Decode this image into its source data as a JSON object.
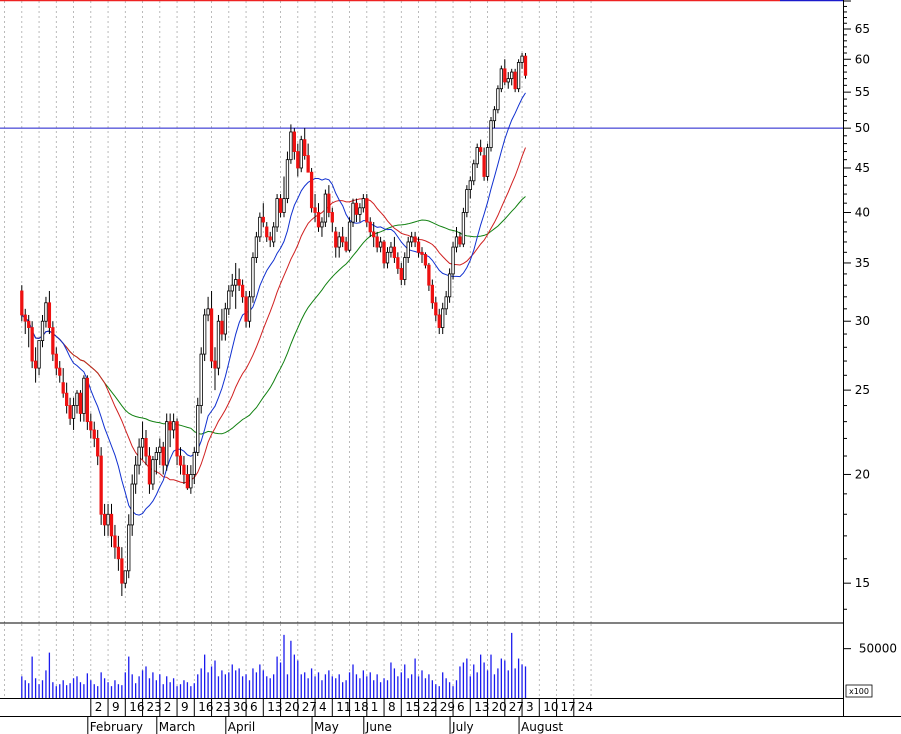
{
  "chart_data": {
    "type": "candlestick",
    "price_axis": {
      "scale": "log",
      "range": [
        13.5,
        70
      ],
      "ticks": [
        15,
        20,
        25,
        30,
        35,
        40,
        45,
        50,
        55,
        60,
        65
      ]
    },
    "volume_axis": {
      "tick": 50000,
      "tick_label": "50000",
      "multiplier_label": "x100",
      "max": 75000
    },
    "resistance_level": 50,
    "colors": {
      "up": "#ffffff",
      "down": "#ee1111",
      "ma_short": "#1030d0",
      "ma_mid": "#d02020",
      "ma_long": "#108010",
      "resistance": "#1a1acc",
      "volume": "#1a1aee",
      "grid": "#aaaaaa",
      "top_line": "#ee2222"
    },
    "date_ticks": [
      "2",
      "9",
      "16",
      "23",
      "2",
      "9",
      "16",
      "23",
      "30",
      "6",
      "13",
      "20",
      "27",
      "4",
      "11",
      "18",
      "1",
      "8",
      "15",
      "22",
      "29",
      "6",
      "13",
      "20",
      "27",
      "3",
      "10",
      "17",
      "24"
    ],
    "months": [
      {
        "label": "February",
        "tick_index": 0
      },
      {
        "label": "March",
        "tick_index": 4
      },
      {
        "label": "April",
        "tick_index": 8
      },
      {
        "label": "May",
        "tick_index": 13
      },
      {
        "label": "June",
        "tick_index": 16
      },
      {
        "label": "July",
        "tick_index": 21
      },
      {
        "label": "August",
        "tick_index": 25
      }
    ],
    "candles": [
      [
        32.5,
        33,
        30,
        30.5
      ],
      [
        30.5,
        31,
        29,
        30
      ],
      [
        30,
        30.5,
        28,
        29.5
      ],
      [
        29.5,
        30,
        26.5,
        27
      ],
      [
        27,
        28,
        25.5,
        26.5
      ],
      [
        26.5,
        28.5,
        26,
        28.5
      ],
      [
        28.5,
        30.5,
        28,
        30
      ],
      [
        30,
        32,
        29.5,
        31.5
      ],
      [
        31.5,
        32.5,
        29,
        29.5
      ],
      [
        29.5,
        30,
        27,
        27.5
      ],
      [
        27.5,
        28,
        26,
        26.5
      ],
      [
        26.5,
        27,
        25.5,
        26
      ],
      [
        25.5,
        26.5,
        24.5,
        24.8
      ],
      [
        24.8,
        25.5,
        23.5,
        24
      ],
      [
        24,
        24.5,
        22.8,
        23.2
      ],
      [
        23.2,
        24.5,
        22.5,
        24
      ],
      [
        24,
        25,
        23.5,
        24.8
      ],
      [
        24.8,
        25,
        23,
        23.5
      ],
      [
        23.5,
        26,
        23,
        25.8
      ],
      [
        25.8,
        26,
        22.5,
        23
      ],
      [
        23,
        23.5,
        22,
        22.5
      ],
      [
        22.5,
        23,
        21.5,
        22
      ],
      [
        22,
        22.5,
        20.5,
        21
      ],
      [
        21,
        21.5,
        17.5,
        18
      ],
      [
        18,
        18.5,
        17,
        17.5
      ],
      [
        17.5,
        18.5,
        17,
        18
      ],
      [
        18,
        18.5,
        16.5,
        17
      ],
      [
        17,
        17.5,
        16,
        16.5
      ],
      [
        16.5,
        17,
        15.5,
        16
      ],
      [
        16,
        16.5,
        14.5,
        15
      ],
      [
        15,
        15.5,
        14.8,
        15.5
      ],
      [
        15.5,
        18,
        15.2,
        17.5
      ],
      [
        17.5,
        20,
        17,
        19.5
      ],
      [
        19.5,
        21,
        19,
        20.5
      ],
      [
        20.5,
        22,
        20,
        21.5
      ],
      [
        21.5,
        23,
        20.8,
        22
      ],
      [
        22,
        22.5,
        20.5,
        21
      ],
      [
        21,
        21.5,
        19,
        19.5
      ],
      [
        19.5,
        21,
        19.2,
        20.8
      ],
      [
        20.8,
        21.5,
        20,
        21.2
      ],
      [
        21.2,
        22,
        20.5,
        21.5
      ],
      [
        21.5,
        21.8,
        20,
        20.5
      ],
      [
        20.5,
        23.5,
        20.2,
        23
      ],
      [
        23,
        23.5,
        21.5,
        22.5
      ],
      [
        22.5,
        23.5,
        22,
        23
      ],
      [
        23,
        23.2,
        20.5,
        21
      ],
      [
        21,
        21.5,
        20,
        20.5
      ],
      [
        20.5,
        21,
        19.5,
        20
      ],
      [
        20,
        20.5,
        19.2,
        19.3
      ],
      [
        19.3,
        20.5,
        19,
        20
      ],
      [
        20,
        21.5,
        19.5,
        21.2
      ],
      [
        21.2,
        24.5,
        21,
        24
      ],
      [
        24,
        28,
        23.5,
        27.5
      ],
      [
        27.5,
        31,
        27,
        30.5
      ],
      [
        30.5,
        32,
        30,
        31
      ],
      [
        31,
        32.5,
        26.5,
        27
      ],
      [
        27,
        28,
        25,
        26.5
      ],
      [
        26.5,
        30.5,
        26,
        30
      ],
      [
        30,
        31,
        28.5,
        29
      ],
      [
        29,
        31.5,
        28.5,
        31
      ],
      [
        31,
        33,
        30.5,
        32.5
      ],
      [
        32.5,
        34,
        32,
        33
      ],
      [
        33,
        35,
        31,
        33.5
      ],
      [
        33.5,
        34.5,
        32.5,
        33
      ],
      [
        33,
        33.5,
        31.5,
        32
      ],
      [
        32,
        32.5,
        29.5,
        30
      ],
      [
        30,
        32.5,
        29.5,
        32
      ],
      [
        32,
        36,
        31.5,
        35.5
      ],
      [
        35.5,
        38,
        35,
        37.5
      ],
      [
        37.5,
        40,
        37,
        39.5
      ],
      [
        39.5,
        41,
        38.5,
        39
      ],
      [
        38.5,
        39,
        37,
        37.5
      ],
      [
        37.5,
        38,
        36.5,
        37.2
      ],
      [
        37,
        39,
        36.5,
        38.5
      ],
      [
        38.5,
        42,
        38,
        41.5
      ],
      [
        41.5,
        42,
        39.5,
        40
      ],
      [
        40,
        44,
        39.5,
        41.5
      ],
      [
        41.5,
        47,
        41,
        46
      ],
      [
        46,
        50.5,
        45.5,
        49.5
      ],
      [
        49.5,
        50,
        46,
        47
      ],
      [
        47,
        48,
        44,
        45
      ],
      [
        45,
        49,
        44.5,
        48.5
      ],
      [
        48.5,
        50,
        46,
        46.5
      ],
      [
        46.5,
        48,
        44.5,
        44.5
      ],
      [
        44.5,
        45,
        40,
        40.5
      ],
      [
        40.5,
        42,
        39,
        40
      ],
      [
        40,
        41,
        38,
        38.5
      ],
      [
        38.5,
        39.5,
        37.5,
        39
      ],
      [
        39,
        42.5,
        38.5,
        42
      ],
      [
        42,
        43,
        39.5,
        40
      ],
      [
        40,
        40.5,
        38,
        39
      ],
      [
        38,
        38.5,
        35.5,
        36.5
      ],
      [
        36.5,
        38,
        35.5,
        37.5
      ],
      [
        37.5,
        38.5,
        36.5,
        37
      ],
      [
        37,
        37.5,
        36,
        36.2
      ],
      [
        36.2,
        39.5,
        36,
        39
      ],
      [
        39,
        41.5,
        38.5,
        41
      ],
      [
        41,
        41.5,
        39,
        39.8
      ],
      [
        39.8,
        41,
        39,
        40.5
      ],
      [
        40.5,
        42,
        40,
        41.5
      ],
      [
        41.5,
        42,
        38.5,
        39
      ],
      [
        39,
        39.5,
        37.5,
        38
      ],
      [
        38,
        39,
        36.5,
        37.5
      ],
      [
        37.5,
        38,
        36,
        36.5
      ],
      [
        36.5,
        37.5,
        36,
        37
      ],
      [
        37,
        37.2,
        34.5,
        35
      ],
      [
        35,
        36.5,
        34.5,
        36
      ],
      [
        36,
        37,
        35.5,
        36.5
      ],
      [
        36.5,
        37.5,
        35,
        35.5
      ],
      [
        35.5,
        36,
        34,
        34.5
      ],
      [
        34.5,
        35,
        33,
        33.5
      ],
      [
        33.5,
        36,
        33,
        35.5
      ],
      [
        35.5,
        37.5,
        35,
        37
      ],
      [
        37,
        38,
        36.5,
        37.5
      ],
      [
        37.5,
        38,
        36.5,
        37
      ],
      [
        37,
        37.5,
        35.5,
        36
      ],
      [
        36,
        36.5,
        35,
        35.8
      ],
      [
        35.8,
        36,
        34.5,
        34.8
      ],
      [
        34.8,
        35,
        32.5,
        33
      ],
      [
        33,
        33.5,
        31,
        31.5
      ],
      [
        31.5,
        32,
        30,
        30.5
      ],
      [
        30.5,
        31,
        29,
        29.5
      ],
      [
        29.5,
        31.5,
        29,
        31
      ],
      [
        31,
        32.5,
        30.5,
        32
      ],
      [
        32,
        34.5,
        31.5,
        34
      ],
      [
        34,
        37,
        33.5,
        36.5
      ],
      [
        36.5,
        38.5,
        36,
        37.5
      ],
      [
        37.5,
        38,
        36.5,
        36.8
      ],
      [
        36.8,
        40.5,
        36.5,
        40
      ],
      [
        40,
        43,
        39.5,
        42.5
      ],
      [
        42.5,
        44,
        41.5,
        43.5
      ],
      [
        43.5,
        46,
        43,
        45.5
      ],
      [
        45.5,
        48,
        45,
        47.5
      ],
      [
        47.5,
        48.5,
        46.5,
        47
      ],
      [
        46.5,
        47.5,
        43.5,
        44
      ],
      [
        44,
        48,
        43.5,
        47.5
      ],
      [
        47.5,
        51.5,
        47,
        51
      ],
      [
        51,
        53,
        50,
        52.5
      ],
      [
        52.5,
        56,
        52,
        55.5
      ],
      [
        55.5,
        59,
        55,
        58.5
      ],
      [
        58.5,
        60,
        56,
        56.5
      ],
      [
        56.5,
        58,
        55.5,
        57
      ],
      [
        57,
        58.5,
        56,
        58
      ],
      [
        58,
        58.5,
        55,
        55.5
      ],
      [
        55.5,
        60,
        55,
        59.5
      ],
      [
        59.5,
        61,
        58.5,
        60.5
      ],
      [
        60.5,
        61,
        57,
        57.5
      ]
    ],
    "volume": [
      22000,
      18000,
      15000,
      42000,
      20000,
      14000,
      18000,
      28000,
      46000,
      16000,
      12000,
      14000,
      18000,
      13000,
      15000,
      20000,
      22000,
      16000,
      14000,
      25000,
      18000,
      14000,
      12000,
      26000,
      20000,
      16000,
      12000,
      18000,
      14000,
      13000,
      26000,
      42000,
      24000,
      15000,
      22000,
      28000,
      32000,
      20000,
      26000,
      18000,
      24000,
      14000,
      22000,
      16000,
      20000,
      12000,
      14000,
      18000,
      16000,
      12000,
      15000,
      24000,
      30000,
      44000,
      26000,
      32000,
      38000,
      22000,
      28000,
      24000,
      26000,
      34000,
      28000,
      30000,
      22000,
      24000,
      18000,
      30000,
      26000,
      34000,
      28000,
      22000,
      20000,
      24000,
      42000,
      36000,
      64000,
      24000,
      58000,
      44000,
      38000,
      24000,
      26000,
      20000,
      30000,
      22000,
      26000,
      18000,
      24000,
      28000,
      22000,
      20000,
      24000,
      16000,
      18000,
      26000,
      34000,
      24000,
      20000,
      28000,
      22000,
      26000,
      18000,
      24000,
      16000,
      20000,
      18000,
      36000,
      30000,
      22000,
      26000,
      34000,
      20000,
      24000,
      40000,
      22000,
      28000,
      20000,
      24000,
      18000,
      14000,
      12000,
      26000,
      20000,
      16000,
      12000,
      18000,
      32000,
      36000,
      40000,
      22000,
      34000,
      26000,
      44000,
      36000,
      28000,
      44000,
      24000,
      30000,
      40000,
      38000,
      28000,
      66000,
      30000,
      40000,
      34000,
      32000
    ]
  }
}
